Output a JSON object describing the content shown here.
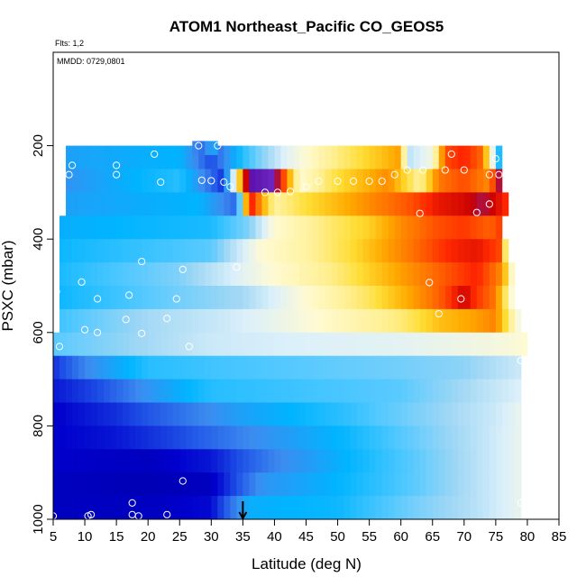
{
  "chart_data": {
    "type": "heatmap",
    "title": "ATOM1 Northeast_Pacific CO_GEOS5",
    "flights_note": "Flts: 1,2",
    "date_note": "MMDD: 0729,0801",
    "xlabel": "Latitude (deg N)",
    "ylabel": "PSXC (mbar)",
    "xlim": [
      5,
      85
    ],
    "ylim": [
      1000,
      0
    ],
    "xticks": [
      5,
      10,
      15,
      20,
      25,
      30,
      35,
      40,
      45,
      50,
      55,
      60,
      65,
      70,
      75,
      80,
      85
    ],
    "yticks": [
      200,
      400,
      600,
      800,
      1000
    ],
    "grid": false,
    "colorscale": [
      "#00008b",
      "#0000cd",
      "#1e50e6",
      "#3c8cf0",
      "#00b4ff",
      "#50c8ff",
      "#a0d7f5",
      "#dcf0fa",
      "#fffad2",
      "#fff096",
      "#ffdc32",
      "#ffaa00",
      "#ff6e00",
      "#ff2800",
      "#c80000",
      "#7832c8",
      "#4b00a0"
    ],
    "marker_color": "#ffffff",
    "arrow_latitude": 35,
    "pressure_levels": [
      225,
      275,
      325,
      375,
      425,
      475,
      525,
      575,
      625,
      675,
      725,
      775,
      825,
      875,
      925,
      975
    ],
    "latitude_range_by_level": [
      [
        7,
        76
      ],
      [
        7,
        76
      ],
      [
        7,
        77
      ],
      [
        6,
        76
      ],
      [
        6,
        77
      ],
      [
        6,
        78
      ],
      [
        6,
        78
      ],
      [
        6,
        79
      ],
      [
        5,
        80
      ],
      [
        5,
        79
      ],
      [
        5,
        79
      ],
      [
        5,
        79
      ],
      [
        5,
        79
      ],
      [
        5,
        79
      ],
      [
        5,
        79
      ],
      [
        5,
        79
      ]
    ],
    "level_profiles": [
      [
        [
          7,
          0.22
        ],
        [
          25,
          0.25
        ],
        [
          30,
          0.12
        ],
        [
          35,
          0.28
        ],
        [
          42,
          0.45
        ],
        [
          48,
          0.55
        ],
        [
          52,
          0.6
        ],
        [
          57,
          0.66
        ],
        [
          60,
          0.7
        ],
        [
          61,
          0.4
        ],
        [
          65,
          0.48
        ],
        [
          67,
          0.78
        ],
        [
          70,
          0.82
        ],
        [
          73,
          0.75
        ],
        [
          76,
          0.18
        ]
      ],
      [
        [
          7,
          0.2
        ],
        [
          25,
          0.28
        ],
        [
          32,
          0.1
        ],
        [
          36,
          0.98
        ],
        [
          40,
          0.95
        ],
        [
          44,
          0.5
        ],
        [
          50,
          0.62
        ],
        [
          58,
          0.72
        ],
        [
          61,
          0.62
        ],
        [
          63,
          0.55
        ],
        [
          66,
          0.74
        ],
        [
          70,
          0.78
        ],
        [
          74,
          0.72
        ],
        [
          76,
          0.95
        ]
      ],
      [
        [
          7,
          0.22
        ],
        [
          28,
          0.25
        ],
        [
          34,
          0.15
        ],
        [
          36,
          0.85
        ],
        [
          40,
          0.55
        ],
        [
          45,
          0.62
        ],
        [
          55,
          0.72
        ],
        [
          62,
          0.78
        ],
        [
          66,
          0.84
        ],
        [
          70,
          0.86
        ],
        [
          73,
          0.9
        ],
        [
          75,
          0.86
        ],
        [
          77,
          0.8
        ]
      ],
      [
        [
          6,
          0.24
        ],
        [
          30,
          0.27
        ],
        [
          36,
          0.35
        ],
        [
          40,
          0.5
        ],
        [
          48,
          0.58
        ],
        [
          55,
          0.64
        ],
        [
          60,
          0.72
        ],
        [
          66,
          0.78
        ],
        [
          70,
          0.8
        ],
        [
          74,
          0.76
        ],
        [
          76,
          0.8
        ]
      ],
      [
        [
          6,
          0.26
        ],
        [
          30,
          0.32
        ],
        [
          38,
          0.5
        ],
        [
          45,
          0.55
        ],
        [
          52,
          0.62
        ],
        [
          58,
          0.7
        ],
        [
          63,
          0.76
        ],
        [
          68,
          0.82
        ],
        [
          72,
          0.84
        ],
        [
          76,
          0.78
        ],
        [
          77,
          0.4
        ]
      ],
      [
        [
          6,
          0.27
        ],
        [
          25,
          0.35
        ],
        [
          32,
          0.42
        ],
        [
          40,
          0.5
        ],
        [
          50,
          0.58
        ],
        [
          55,
          0.64
        ],
        [
          62,
          0.72
        ],
        [
          68,
          0.78
        ],
        [
          72,
          0.82
        ],
        [
          76,
          0.72
        ],
        [
          78,
          0.45
        ]
      ],
      [
        [
          6,
          0.26
        ],
        [
          25,
          0.34
        ],
        [
          35,
          0.38
        ],
        [
          45,
          0.5
        ],
        [
          55,
          0.6
        ],
        [
          62,
          0.7
        ],
        [
          67,
          0.78
        ],
        [
          70,
          0.87
        ],
        [
          72,
          0.8
        ],
        [
          75,
          0.74
        ],
        [
          78,
          0.45
        ]
      ],
      [
        [
          6,
          0.3
        ],
        [
          20,
          0.38
        ],
        [
          32,
          0.42
        ],
        [
          40,
          0.46
        ],
        [
          50,
          0.52
        ],
        [
          60,
          0.58
        ],
        [
          66,
          0.66
        ],
        [
          72,
          0.7
        ],
        [
          75,
          0.73
        ],
        [
          79,
          0.45
        ]
      ],
      [
        [
          5,
          0.32
        ],
        [
          20,
          0.38
        ],
        [
          30,
          0.42
        ],
        [
          45,
          0.44
        ],
        [
          60,
          0.45
        ],
        [
          75,
          0.48
        ],
        [
          80,
          0.5
        ]
      ],
      [
        [
          5,
          0.1
        ],
        [
          10,
          0.18
        ],
        [
          20,
          0.28
        ],
        [
          30,
          0.3
        ],
        [
          45,
          0.32
        ],
        [
          60,
          0.34
        ],
        [
          70,
          0.36
        ],
        [
          79,
          0.42
        ]
      ],
      [
        [
          5,
          0.08
        ],
        [
          12,
          0.12
        ],
        [
          20,
          0.2
        ],
        [
          30,
          0.28
        ],
        [
          45,
          0.3
        ],
        [
          60,
          0.32
        ],
        [
          70,
          0.38
        ],
        [
          79,
          0.44
        ]
      ],
      [
        [
          5,
          0.06
        ],
        [
          15,
          0.1
        ],
        [
          25,
          0.16
        ],
        [
          35,
          0.22
        ],
        [
          50,
          0.28
        ],
        [
          65,
          0.36
        ],
        [
          75,
          0.42
        ],
        [
          79,
          0.46
        ]
      ],
      [
        [
          5,
          0.06
        ],
        [
          15,
          0.08
        ],
        [
          25,
          0.12
        ],
        [
          35,
          0.18
        ],
        [
          50,
          0.25
        ],
        [
          62,
          0.33
        ],
        [
          72,
          0.4
        ],
        [
          79,
          0.46
        ]
      ],
      [
        [
          5,
          0.06
        ],
        [
          20,
          0.05
        ],
        [
          30,
          0.08
        ],
        [
          40,
          0.18
        ],
        [
          50,
          0.24
        ],
        [
          62,
          0.32
        ],
        [
          72,
          0.4
        ],
        [
          79,
          0.46
        ]
      ],
      [
        [
          5,
          0.05
        ],
        [
          20,
          0.04
        ],
        [
          30,
          0.05
        ],
        [
          38,
          0.2
        ],
        [
          50,
          0.25
        ],
        [
          62,
          0.32
        ],
        [
          72,
          0.4
        ],
        [
          79,
          0.46
        ]
      ],
      [
        [
          5,
          0.05
        ],
        [
          20,
          0.05
        ],
        [
          30,
          0.07
        ],
        [
          36,
          0.24
        ],
        [
          50,
          0.26
        ],
        [
          62,
          0.34
        ],
        [
          72,
          0.4
        ],
        [
          79,
          0.46
        ]
      ]
    ],
    "extra_cells": [
      {
        "lat": 27.5,
        "p": 205,
        "v": 0.18
      },
      {
        "lat": 28.5,
        "p": 205,
        "v": 0.16
      },
      {
        "lat": 29.5,
        "p": 205,
        "v": 0.2
      },
      {
        "lat": 30.5,
        "p": 205,
        "v": 0.22
      }
    ],
    "observations": [
      {
        "lat": 8,
        "p": 242
      },
      {
        "lat": 7.5,
        "p": 262
      },
      {
        "lat": 15,
        "p": 242
      },
      {
        "lat": 15,
        "p": 262
      },
      {
        "lat": 21,
        "p": 218
      },
      {
        "lat": 22,
        "p": 278
      },
      {
        "lat": 28,
        "p": 200
      },
      {
        "lat": 31,
        "p": 200
      },
      {
        "lat": 28.5,
        "p": 274
      },
      {
        "lat": 30,
        "p": 275
      },
      {
        "lat": 32,
        "p": 278
      },
      {
        "lat": 33,
        "p": 288
      },
      {
        "lat": 38.5,
        "p": 300
      },
      {
        "lat": 40.5,
        "p": 300
      },
      {
        "lat": 42.5,
        "p": 298
      },
      {
        "lat": 45,
        "p": 288
      },
      {
        "lat": 47,
        "p": 276
      },
      {
        "lat": 50,
        "p": 276
      },
      {
        "lat": 52.5,
        "p": 276
      },
      {
        "lat": 55,
        "p": 276
      },
      {
        "lat": 57,
        "p": 276
      },
      {
        "lat": 59,
        "p": 262
      },
      {
        "lat": 61,
        "p": 252
      },
      {
        "lat": 63.5,
        "p": 252
      },
      {
        "lat": 67,
        "p": 252
      },
      {
        "lat": 68,
        "p": 218
      },
      {
        "lat": 70,
        "p": 252
      },
      {
        "lat": 74,
        "p": 262
      },
      {
        "lat": 75.5,
        "p": 262
      },
      {
        "lat": 75,
        "p": 228
      },
      {
        "lat": 63,
        "p": 345
      },
      {
        "lat": 72,
        "p": 343
      },
      {
        "lat": 74,
        "p": 325
      },
      {
        "lat": 19,
        "p": 448
      },
      {
        "lat": 25.5,
        "p": 465
      },
      {
        "lat": 34,
        "p": 460
      },
      {
        "lat": 9.5,
        "p": 492
      },
      {
        "lat": 5.5,
        "p": 512
      },
      {
        "lat": 12,
        "p": 528
      },
      {
        "lat": 17,
        "p": 520
      },
      {
        "lat": 24.5,
        "p": 528
      },
      {
        "lat": 64.5,
        "p": 493
      },
      {
        "lat": 66,
        "p": 560
      },
      {
        "lat": 69.5,
        "p": 528
      },
      {
        "lat": 16.5,
        "p": 572
      },
      {
        "lat": 23,
        "p": 570
      },
      {
        "lat": 10,
        "p": 594
      },
      {
        "lat": 12,
        "p": 600
      },
      {
        "lat": 19,
        "p": 602
      },
      {
        "lat": 6,
        "p": 630
      },
      {
        "lat": 26.5,
        "p": 630
      },
      {
        "lat": 79,
        "p": 660
      },
      {
        "lat": 25.5,
        "p": 918
      },
      {
        "lat": 17.5,
        "p": 965
      },
      {
        "lat": 79,
        "p": 965
      },
      {
        "lat": 11,
        "p": 990
      },
      {
        "lat": 10.5,
        "p": 993
      },
      {
        "lat": 17.5,
        "p": 990
      },
      {
        "lat": 18.5,
        "p": 993
      },
      {
        "lat": 23,
        "p": 990
      },
      {
        "lat": 5,
        "p": 993
      }
    ]
  }
}
